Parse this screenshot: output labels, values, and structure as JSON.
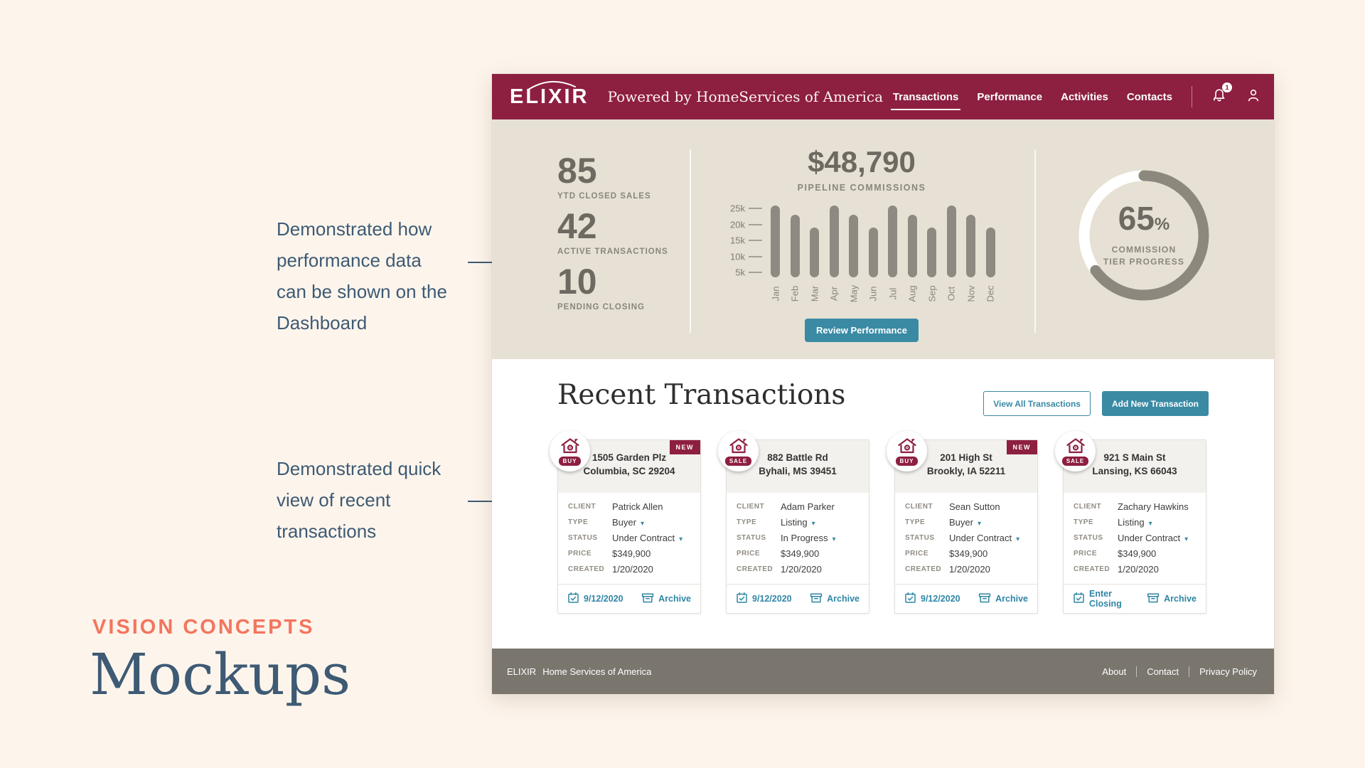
{
  "slide": {
    "annotation_performance": "Demonstrated how\nperformance data\ncan be shown on the\nDashboard",
    "annotation_transactions": "Demonstrated quick\nview of recent\ntransactions",
    "eyebrow": "VISION CONCEPTS",
    "title": "Mockups",
    "accent_color": "#f3755e",
    "text_color": "#3e5a74"
  },
  "header": {
    "logo": "ELIXIR",
    "tagline": "Powered by HomeServices of America",
    "nav": [
      {
        "label": "Transactions",
        "active": true
      },
      {
        "label": "Performance",
        "active": false
      },
      {
        "label": "Activities",
        "active": false
      },
      {
        "label": "Contacts",
        "active": false
      }
    ],
    "notification_count": "1",
    "brand_color": "#8d1f40"
  },
  "stats": [
    {
      "value": "85",
      "label": "YTD CLOSED SALES"
    },
    {
      "value": "42",
      "label": "ACTIVE TRANSACTIONS"
    },
    {
      "value": "10",
      "label": "PENDING CLOSING"
    }
  ],
  "chart_data": [
    {
      "type": "bar",
      "title": "$48,790",
      "subtitle": "PIPELINE COMMISSIONS",
      "categories": [
        "Jan",
        "Feb",
        "Mar",
        "Apr",
        "May",
        "Jun",
        "Jul",
        "Aug",
        "Sep",
        "Oct",
        "Nov",
        "Dec"
      ],
      "values": [
        26000,
        23000,
        19000,
        26000,
        23000,
        19000,
        26000,
        23000,
        19000,
        26000,
        23000,
        19000
      ],
      "yticks": [
        {
          "label": "25k",
          "value": 25
        },
        {
          "label": "20k",
          "value": 20
        },
        {
          "label": "15k",
          "value": 15
        },
        {
          "label": "10k",
          "value": 10
        },
        {
          "label": "5k",
          "value": 5
        }
      ],
      "ylim": [
        0,
        27000
      ],
      "bar_color": "#8f8a81",
      "grid": false,
      "legend": "none"
    },
    {
      "type": "pie",
      "subtype": "donut-progress",
      "labels": [
        "progress",
        "remaining"
      ],
      "values": [
        65,
        35
      ],
      "colors": [
        "#8d887e",
        "#ffffff"
      ],
      "center_value": "65",
      "center_suffix": "%",
      "center_label": "COMMISSION\nTIER PROGRESS"
    }
  ],
  "pipeline": {
    "button_label": "Review Performance",
    "button_color": "#3a8aa4"
  },
  "transactions": {
    "title": "Recent Transactions",
    "view_all_label": "View All Transactions",
    "add_new_label": "Add New Transaction",
    "field_labels": [
      "CLIENT",
      "TYPE",
      "STATUS",
      "PRICE",
      "CREATED"
    ],
    "new_badge_label": "NEW",
    "cards": [
      {
        "badge": "BUY",
        "is_new": true,
        "address1": "1505 Garden Plz",
        "address2": "Columbia, SC 29204",
        "client": "Patrick Allen",
        "type": "Buyer",
        "status": "Under Contract",
        "price": "$349,900",
        "created": "1/20/2020",
        "footer_left": "9/12/2020",
        "footer_right": "Archive"
      },
      {
        "badge": "SALE",
        "is_new": false,
        "address1": "882 Battle Rd",
        "address2": "Byhali, MS 39451",
        "client": "Adam Parker",
        "type": "Listing",
        "status": "In Progress",
        "price": "$349,900",
        "created": "1/20/2020",
        "footer_left": "9/12/2020",
        "footer_right": "Archive"
      },
      {
        "badge": "BUY",
        "is_new": true,
        "address1": "201 High St",
        "address2": "Brookly, IA 52211",
        "client": "Sean Sutton",
        "type": "Buyer",
        "status": "Under Contract",
        "price": "$349,900",
        "created": "1/20/2020",
        "footer_left": "9/12/2020",
        "footer_right": "Archive"
      },
      {
        "badge": "SALE",
        "is_new": false,
        "address1": "921 S Main St",
        "address2": "Lansing, KS 66043",
        "client": "Zachary Hawkins",
        "type": "Listing",
        "status": "Under Contract",
        "price": "$349,900",
        "created": "1/20/2020",
        "footer_left": "Enter Closing",
        "footer_right": "Archive"
      }
    ]
  },
  "footer": {
    "brand": "ELIXIR",
    "company": "Home Services of America",
    "links": [
      "About",
      "Contact",
      "Privacy Policy"
    ]
  }
}
